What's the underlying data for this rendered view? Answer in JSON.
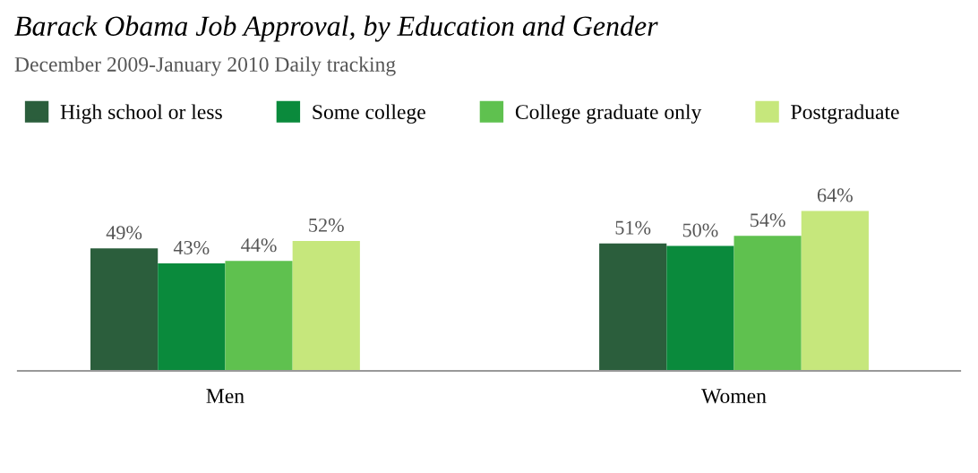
{
  "chart_data": {
    "type": "bar",
    "title": "Barack Obama Job Approval, by Education and Gender",
    "subtitle": "December 2009-January 2010 Daily tracking",
    "categories": [
      "Men",
      "Women"
    ],
    "series": [
      {
        "name": "High school or less",
        "color": "#2b5e3c",
        "values": [
          49,
          51
        ],
        "value_labels": [
          "49%",
          "51%"
        ]
      },
      {
        "name": "Some college",
        "color": "#0a8a3c",
        "values": [
          43,
          50
        ],
        "value_labels": [
          "43%",
          "50%"
        ]
      },
      {
        "name": "College graduate only",
        "color": "#5fc14f",
        "values": [
          44,
          54
        ],
        "value_labels": [
          "44%",
          "54%"
        ]
      },
      {
        "name": "Postgraduate",
        "color": "#c6e77c",
        "values": [
          52,
          64
        ],
        "value_labels": [
          "52%",
          "64%"
        ]
      }
    ],
    "legend": "top"
  }
}
